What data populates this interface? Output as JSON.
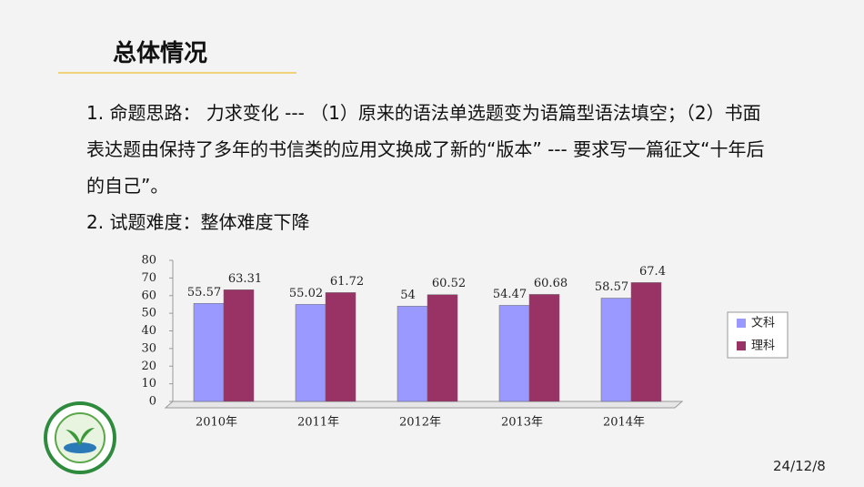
{
  "header": {
    "title": "总体情况"
  },
  "body": {
    "items": [
      "1. 命题思路： 力求变化 --- （1）原来的语法单选题变为语篇型语法填空；（2）书面表达题由保持了多年的书信类的应用文换成了新的“版本” --- 要求写一篇征文“十年后的自己”。",
      "2. 试题难度：整体难度下降"
    ]
  },
  "chart_data": {
    "type": "bar",
    "categories": [
      "2010年",
      "2011年",
      "2012年",
      "2013年",
      "2014年"
    ],
    "series": [
      {
        "name": "文科",
        "color": "#9999ff",
        "values": [
          55.57,
          55.02,
          54,
          54.47,
          58.57
        ]
      },
      {
        "name": "理科",
        "color": "#993366",
        "values": [
          63.31,
          61.72,
          60.52,
          60.68,
          67.4
        ]
      }
    ],
    "ylim": [
      0,
      80
    ],
    "yticks": [
      0,
      10,
      20,
      30,
      40,
      50,
      60,
      70,
      80
    ],
    "legend": "right"
  },
  "footer": {
    "date": "24/12/8"
  }
}
